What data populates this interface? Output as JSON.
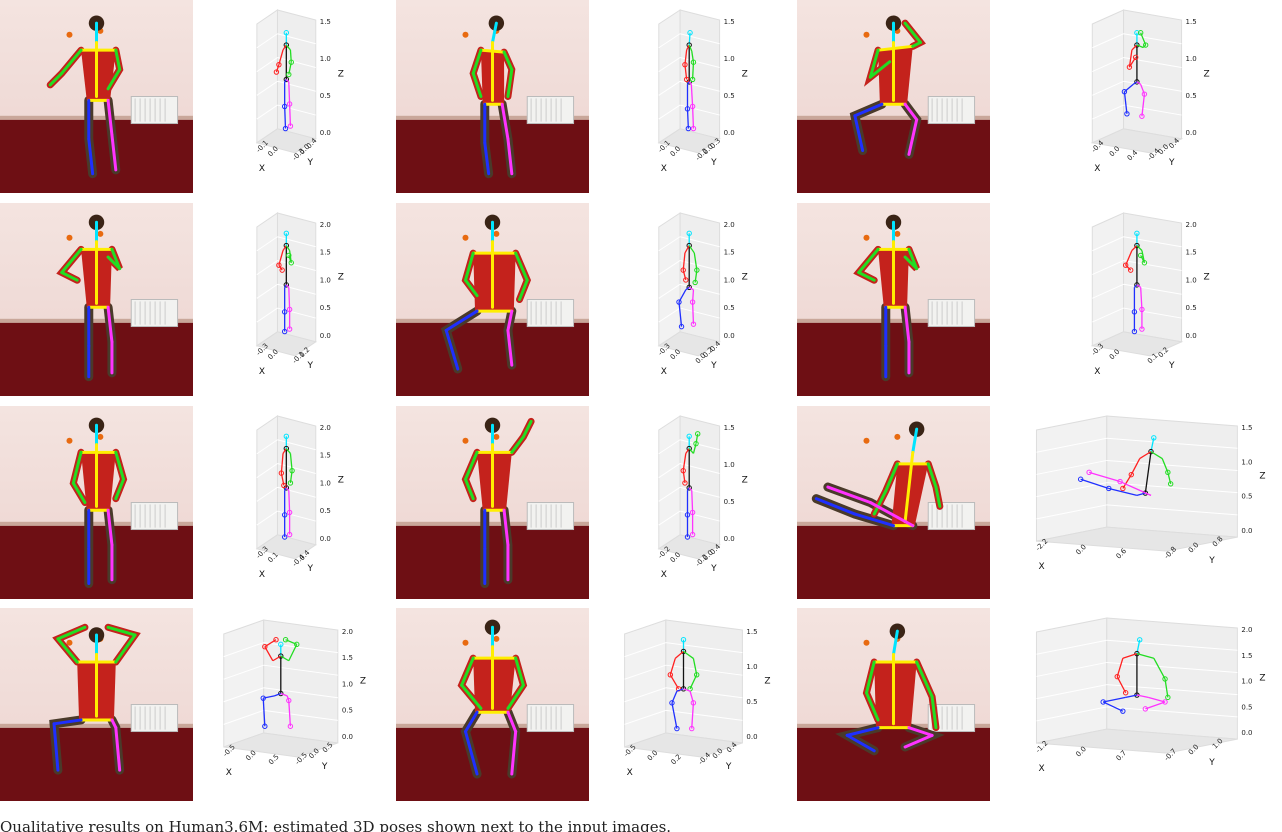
{
  "figure": {
    "rows": 4,
    "pairs_per_row": 3,
    "colors": {
      "head": "#00e5ff",
      "right_arm": "#ff2020",
      "left_arm": "#22dd22",
      "right_leg": "#1f2fff",
      "left_leg": "#ff33ff",
      "spine": "#111111",
      "hip_bar": "#ffee00",
      "wall": "#ecd3cf",
      "floor": "#6e0f14",
      "shirt": "#c4221c"
    },
    "panels": [
      {
        "pose": "standing",
        "z_ticks": [
          "0.0",
          "0.5",
          "1.0",
          "1.5"
        ],
        "x_ticks": [
          "-0.1",
          "0.0"
        ],
        "y_ticks": [
          "-0.3",
          "0.0",
          "0.4"
        ],
        "box": "narrow"
      },
      {
        "pose": "standing-bent",
        "z_ticks": [
          "0.0",
          "0.5",
          "1.0",
          "1.5"
        ],
        "x_ticks": [
          "-0.1",
          "0.0"
        ],
        "y_ticks": [
          "-0.2",
          "0.0",
          "0.3"
        ],
        "box": "narrow"
      },
      {
        "pose": "sitting-phone",
        "z_ticks": [
          "0.0",
          "0.5",
          "1.0",
          "1.5"
        ],
        "x_ticks": [
          "-0.4",
          "0.0",
          "0.4"
        ],
        "y_ticks": [
          "-0.4",
          "0.0",
          "0.4"
        ],
        "box": "narrow"
      },
      {
        "pose": "standing-arm",
        "z_ticks": [
          "0.0",
          "0.5",
          "1.0",
          "1.5",
          "2.0"
        ],
        "x_ticks": [
          "-0.3",
          "0.0"
        ],
        "y_ticks": [
          "-0.1",
          "0.2"
        ],
        "box": "narrow"
      },
      {
        "pose": "sitting-back",
        "z_ticks": [
          "0.0",
          "0.5",
          "1.0",
          "1.5",
          "2.0"
        ],
        "x_ticks": [
          "-0.3",
          "0.0"
        ],
        "y_ticks": [
          "0.0",
          "0.2",
          "0.4"
        ],
        "box": "narrow"
      },
      {
        "pose": "standing-arm",
        "z_ticks": [
          "0.0",
          "0.5",
          "1.0",
          "1.5",
          "2.0"
        ],
        "x_ticks": [
          "-0.3",
          "0.0"
        ],
        "y_ticks": [
          "0.1",
          "0.2"
        ],
        "box": "narrow"
      },
      {
        "pose": "standing-hands",
        "z_ticks": [
          "0.0",
          "0.5",
          "1.0",
          "1.5",
          "2.0"
        ],
        "x_ticks": [
          "-0.3",
          "0.1"
        ],
        "y_ticks": [
          "-0.4",
          "0.4"
        ],
        "box": "narrow"
      },
      {
        "pose": "standing-wave",
        "z_ticks": [
          "0.0",
          "0.5",
          "1.0",
          "1.5"
        ],
        "x_ticks": [
          "-0.2",
          "0.0"
        ],
        "y_ticks": [
          "-0.2",
          "0.0",
          "0.4"
        ],
        "box": "narrow"
      },
      {
        "pose": "reclining",
        "z_ticks": [
          "0.0",
          "0.5",
          "1.0",
          "1.5"
        ],
        "x_ticks": [
          "-2.2",
          "0.0",
          "0.6"
        ],
        "y_ticks": [
          "-0.8",
          "0.0",
          "0.8"
        ],
        "box": "wide"
      },
      {
        "pose": "sitting-hands-head",
        "z_ticks": [
          "0.0",
          "0.5",
          "1.0",
          "1.5",
          "2.0"
        ],
        "x_ticks": [
          "-0.5",
          "0.0",
          "0.5"
        ],
        "y_ticks": [
          "-0.5",
          "0.0",
          "0.5"
        ],
        "box": "mid"
      },
      {
        "pose": "sitting-front",
        "z_ticks": [
          "0.0",
          "0.5",
          "1.0",
          "1.5"
        ],
        "x_ticks": [
          "-0.5",
          "0.0",
          "0.2"
        ],
        "y_ticks": [
          "-0.4",
          "0.0",
          "0.4"
        ],
        "box": "mid"
      },
      {
        "pose": "floor-sitting",
        "z_ticks": [
          "0.0",
          "0.5",
          "1.0",
          "1.5",
          "2.0"
        ],
        "x_ticks": [
          "-1.2",
          "0.0",
          "0.7"
        ],
        "y_ticks": [
          "-0.7",
          "0.0",
          "1.0"
        ],
        "box": "wide"
      }
    ],
    "axis_labels": {
      "x": "X",
      "y": "Y",
      "z": "Z"
    }
  },
  "caption": "Qualitative results on Human3.6M: estimated 3D poses shown next to the input images."
}
